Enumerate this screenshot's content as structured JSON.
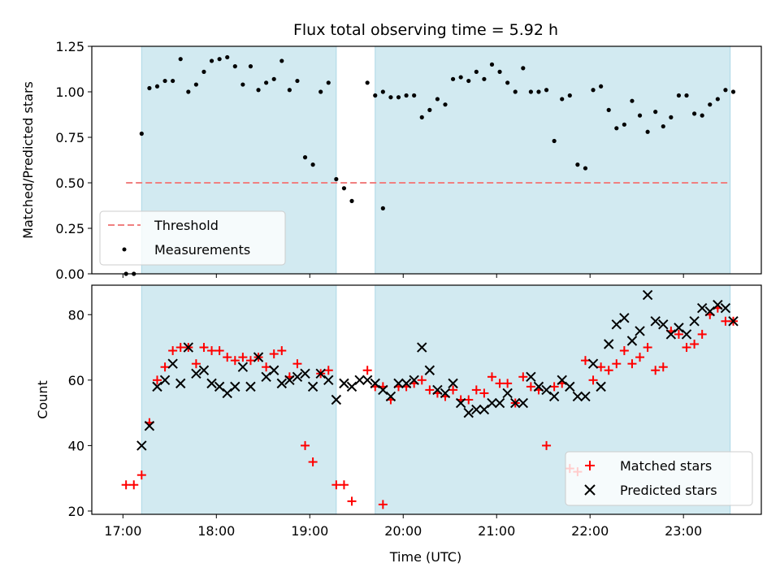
{
  "chart_data": [
    {
      "type": "scatter",
      "title": "Flux total observing time = 5.92 h",
      "xlabel": "",
      "ylabel": "Matched/Predicted stars",
      "ylim": [
        0,
        1.25
      ],
      "yticks": [
        "0.00",
        "0.25",
        "0.50",
        "0.75",
        "1.00",
        "1.25"
      ],
      "yticks_values": [
        0,
        0.25,
        0.5,
        0.75,
        1.0,
        1.25
      ],
      "xlim": [
        "16:40",
        "23:50"
      ],
      "threshold": {
        "name": "Threshold",
        "value": 0.5,
        "x_start": "17:02",
        "x_end": "23:30",
        "color": "#f08080"
      },
      "bands": [
        {
          "start": "17:12",
          "end": "19:17"
        },
        {
          "start": "19:42",
          "end": "23:30"
        }
      ],
      "band_color": "#add8e6",
      "legend_position": "lower-left",
      "series": [
        {
          "name": "Measurements",
          "color": "#000000",
          "x": [
            "17:02",
            "17:07",
            "17:12",
            "17:17",
            "17:22",
            "17:27",
            "17:32",
            "17:37",
            "17:42",
            "17:47",
            "17:52",
            "17:57",
            "18:02",
            "18:07",
            "18:12",
            "18:17",
            "18:22",
            "18:27",
            "18:32",
            "18:37",
            "18:42",
            "18:47",
            "18:52",
            "18:57",
            "19:02",
            "19:07",
            "19:12",
            "19:17",
            "19:22",
            "19:27",
            "19:37",
            "19:47",
            "19:42",
            "19:47",
            "19:52",
            "19:57",
            "20:02",
            "20:07",
            "20:12",
            "20:17",
            "20:22",
            "20:27",
            "20:32",
            "20:37",
            "20:42",
            "20:47",
            "20:52",
            "20:57",
            "21:02",
            "21:07",
            "21:12",
            "21:17",
            "21:22",
            "21:27",
            "21:32",
            "21:37",
            "21:42",
            "21:47",
            "21:52",
            "21:57",
            "22:02",
            "22:07",
            "22:12",
            "22:17",
            "22:22",
            "22:27",
            "22:32",
            "22:37",
            "22:42",
            "22:47",
            "22:52",
            "22:57",
            "23:02",
            "23:07",
            "23:12",
            "23:17",
            "23:22",
            "23:27",
            "23:32"
          ],
          "y": [
            0.0,
            0.0,
            0.77,
            1.02,
            1.03,
            1.06,
            1.06,
            1.18,
            1.0,
            1.04,
            1.11,
            1.17,
            1.18,
            1.19,
            1.14,
            1.04,
            1.14,
            1.01,
            1.05,
            1.07,
            1.17,
            1.01,
            1.06,
            0.64,
            0.6,
            1.0,
            1.05,
            0.52,
            0.47,
            0.4,
            1.05,
            0.36,
            0.98,
            1.0,
            0.97,
            0.97,
            0.98,
            0.98,
            0.86,
            0.9,
            0.96,
            0.93,
            1.07,
            1.08,
            1.06,
            1.11,
            1.07,
            1.15,
            1.11,
            1.05,
            1.0,
            1.13,
            1.0,
            1.0,
            1.01,
            0.73,
            0.96,
            0.98,
            0.6,
            0.58,
            1.01,
            1.03,
            0.9,
            0.8,
            0.82,
            0.95,
            0.87,
            0.78,
            0.89,
            0.81,
            0.86,
            0.98,
            0.98,
            0.88,
            0.87,
            0.93,
            0.96,
            1.01,
            1.0
          ]
        }
      ]
    },
    {
      "type": "scatter",
      "title": "",
      "xlabel": "Time (UTC)",
      "ylabel": "Count",
      "ylim": [
        19,
        89
      ],
      "yticks": [
        "20",
        "40",
        "60",
        "80"
      ],
      "yticks_values": [
        20,
        40,
        60,
        80
      ],
      "xticks": [
        "17:00",
        "18:00",
        "19:00",
        "20:00",
        "21:00",
        "22:00",
        "23:00"
      ],
      "xlim": [
        "16:40",
        "23:50"
      ],
      "bands": [
        {
          "start": "17:12",
          "end": "19:17"
        },
        {
          "start": "19:42",
          "end": "23:30"
        }
      ],
      "band_color": "#add8e6",
      "legend_position": "lower-right",
      "series": [
        {
          "name": "Matched stars",
          "marker": "plus",
          "color": "#ff0000",
          "x": [
            "17:02",
            "17:07",
            "17:12",
            "17:17",
            "17:22",
            "17:27",
            "17:32",
            "17:37",
            "17:42",
            "17:47",
            "17:52",
            "17:57",
            "18:02",
            "18:07",
            "18:12",
            "18:17",
            "18:22",
            "18:27",
            "18:32",
            "18:37",
            "18:42",
            "18:47",
            "18:52",
            "18:57",
            "19:02",
            "19:07",
            "19:12",
            "19:17",
            "19:22",
            "19:27",
            "19:37",
            "19:47",
            "19:42",
            "19:47",
            "19:52",
            "19:57",
            "20:02",
            "20:07",
            "20:12",
            "20:17",
            "20:22",
            "20:27",
            "20:32",
            "20:37",
            "20:42",
            "20:47",
            "20:52",
            "20:57",
            "21:02",
            "21:07",
            "21:12",
            "21:17",
            "21:22",
            "21:27",
            "21:32",
            "21:37",
            "21:42",
            "21:47",
            "21:52",
            "21:57",
            "22:02",
            "22:07",
            "22:12",
            "22:17",
            "22:22",
            "22:27",
            "22:32",
            "22:37",
            "22:42",
            "22:47",
            "22:52",
            "22:57",
            "23:02",
            "23:07",
            "23:12",
            "23:17",
            "23:22",
            "23:27",
            "23:32"
          ],
          "y": [
            28,
            28,
            31,
            47,
            60,
            64,
            69,
            70,
            70,
            65,
            70,
            69,
            69,
            67,
            66,
            67,
            66,
            67,
            64,
            68,
            69,
            61,
            65,
            40,
            35,
            62,
            63,
            28,
            28,
            23,
            63,
            22,
            58,
            58,
            54,
            58,
            58,
            59,
            60,
            57,
            56,
            55,
            57,
            54,
            54,
            57,
            56,
            61,
            59,
            59,
            53,
            61,
            58,
            57,
            40,
            58,
            59,
            33,
            32,
            66,
            60,
            64,
            63,
            65,
            69,
            65,
            67,
            70,
            63,
            64,
            75,
            74,
            70,
            71,
            74,
            80,
            82,
            78,
            78
          ]
        },
        {
          "name": "Predicted stars",
          "marker": "x",
          "color": "#000000",
          "x": [
            "17:12",
            "17:17",
            "17:22",
            "17:27",
            "17:32",
            "17:37",
            "17:42",
            "17:47",
            "17:52",
            "17:57",
            "18:02",
            "18:07",
            "18:12",
            "18:17",
            "18:22",
            "18:27",
            "18:32",
            "18:37",
            "18:42",
            "18:47",
            "18:52",
            "18:57",
            "19:02",
            "19:07",
            "19:12",
            "19:17",
            "19:22",
            "19:27",
            "19:32",
            "19:37",
            "19:42",
            "19:47",
            "19:52",
            "19:57",
            "20:02",
            "20:07",
            "20:12",
            "20:17",
            "20:22",
            "20:27",
            "20:32",
            "20:37",
            "20:42",
            "20:47",
            "20:52",
            "20:57",
            "21:02",
            "21:07",
            "21:12",
            "21:17",
            "21:22",
            "21:27",
            "21:32",
            "21:37",
            "21:42",
            "21:47",
            "21:52",
            "21:57",
            "22:02",
            "22:07",
            "22:12",
            "22:17",
            "22:22",
            "22:27",
            "22:32",
            "22:37",
            "22:42",
            "22:47",
            "22:52",
            "22:57",
            "23:02",
            "23:07",
            "23:12",
            "23:17",
            "23:22",
            "23:27",
            "23:32"
          ],
          "y": [
            40,
            46,
            58,
            60,
            65,
            59,
            70,
            62,
            63,
            59,
            58,
            56,
            58,
            64,
            58,
            67,
            61,
            63,
            59,
            60,
            61,
            62,
            58,
            62,
            60,
            54,
            59,
            58,
            60,
            60,
            59,
            57,
            55,
            59,
            59,
            60,
            70,
            63,
            57,
            56,
            59,
            53,
            50,
            51,
            51,
            53,
            53,
            56,
            53,
            53,
            61,
            58,
            57,
            55,
            60,
            58,
            55,
            55,
            65,
            58,
            71,
            77,
            79,
            72,
            75,
            86,
            78,
            77,
            74,
            76,
            74,
            78,
            82,
            81,
            83,
            82,
            78
          ]
        }
      ]
    }
  ]
}
